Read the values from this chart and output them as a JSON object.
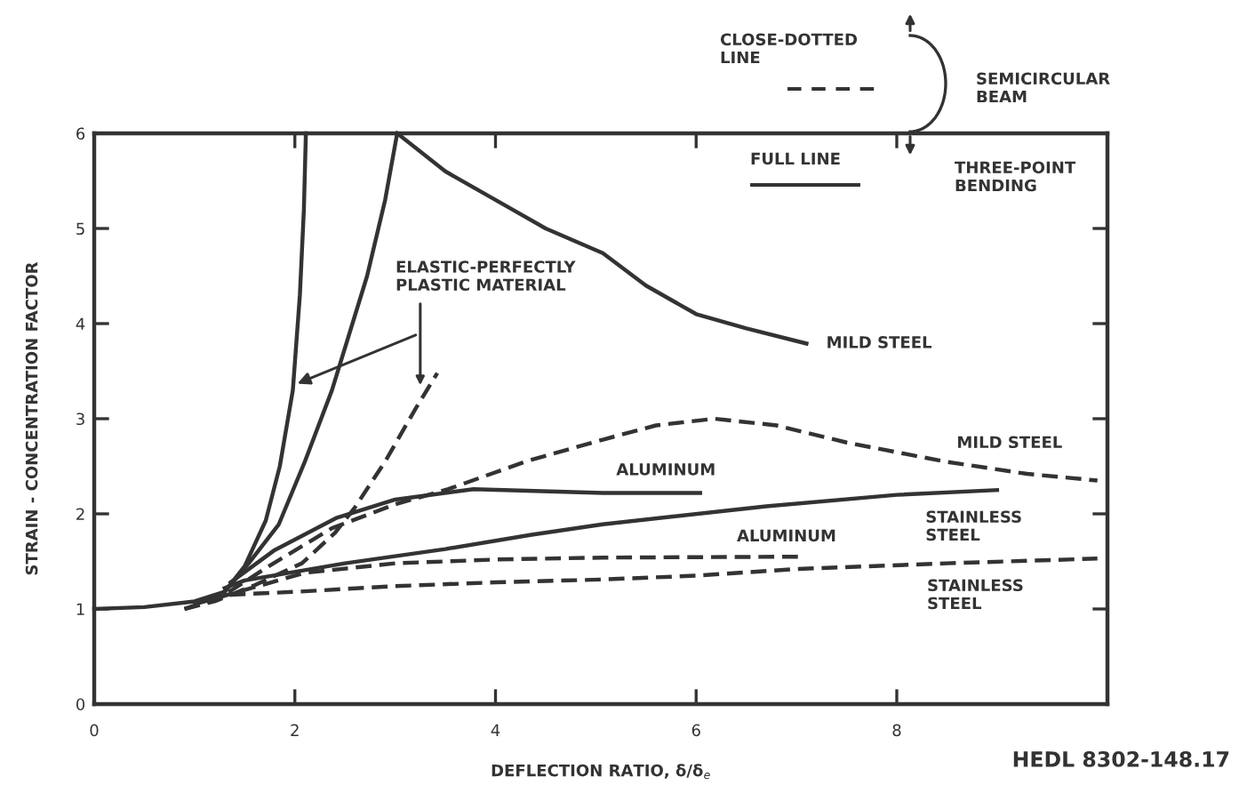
{
  "chart_data": {
    "type": "line",
    "xlabel": "DEFLECTION RATIO, δ/δ$_{e}$",
    "ylabel": "STRAIN - CONCENTRATION FACTOR",
    "xlim": [
      0,
      10.1
    ],
    "ylim": [
      0,
      6
    ],
    "xticks": [
      0,
      2,
      4,
      6,
      8
    ],
    "yticks": [
      0,
      1,
      2,
      3,
      4,
      5,
      6
    ],
    "grid": false,
    "legend": false,
    "marker": "none",
    "series": [
      {
        "color": "#333333",
        "line_style": "solid",
        "x": [
          0,
          0.5,
          1.0,
          1.3,
          1.5,
          1.71,
          1.85,
          1.98,
          2.05,
          2.09,
          2.11
        ],
        "values": [
          1,
          1.02,
          1.08,
          1.18,
          1.45,
          1.93,
          2.5,
          3.3,
          4.3,
          5.2,
          6
        ]
      },
      {
        "color": "#333333",
        "line_style": "solid",
        "x": [
          1.3,
          1.54,
          1.84,
          2.1,
          2.37,
          2.72,
          2.9,
          3.02
        ],
        "values": [
          1.18,
          1.48,
          1.89,
          2.55,
          3.3,
          4.5,
          5.3,
          6
        ]
      },
      {
        "name": "MILD STEEL",
        "color": "#333333",
        "line_style": "solid",
        "x": [
          3.02,
          3.5,
          4.0,
          4.5,
          5.07,
          5.5,
          6.0,
          6.5,
          7.1
        ],
        "values": [
          6,
          5.6,
          5.3,
          5.0,
          4.74,
          4.4,
          4.1,
          3.95,
          3.79
        ]
      },
      {
        "name": "ALUMINUM",
        "color": "#333333",
        "line_style": "solid",
        "x": [
          1.36,
          1.8,
          2.42,
          3.0,
          3.78,
          5.07,
          6.04
        ],
        "values": [
          1.28,
          1.62,
          1.96,
          2.15,
          2.26,
          2.22,
          2.22
        ]
      },
      {
        "name": "STAINLESS\nSTEEL",
        "color": "#333333",
        "line_style": "solid",
        "x": [
          1.3,
          1.5,
          2.5,
          3.5,
          4.36,
          5.07,
          6.7,
          8.0,
          9.0
        ],
        "values": [
          1.22,
          1.3,
          1.48,
          1.63,
          1.78,
          1.89,
          2.08,
          2.2,
          2.25
        ]
      },
      {
        "color": "#333333",
        "line_style": "dashed",
        "x": [
          0.9,
          1.2,
          1.6,
          2.07,
          2.4,
          2.6,
          2.9,
          3.2,
          3.42
        ],
        "values": [
          1.0,
          1.08,
          1.25,
          1.48,
          1.8,
          2.07,
          2.55,
          3.1,
          3.48
        ]
      },
      {
        "name": "MILD STEEL",
        "color": "#333333",
        "line_style": "dashed",
        "x": [
          0.9,
          1.3,
          1.71,
          2.37,
          3.0,
          3.53,
          4.3,
          5.07,
          5.6,
          6.18,
          6.8,
          7.5,
          8.48,
          9.3,
          10.0
        ],
        "values": [
          1.0,
          1.15,
          1.43,
          1.85,
          2.1,
          2.26,
          2.55,
          2.78,
          2.93,
          3.0,
          2.93,
          2.75,
          2.55,
          2.42,
          2.35
        ]
      },
      {
        "name": "ALUMINUM",
        "color": "#333333",
        "line_style": "dashed",
        "x": [
          1.0,
          1.5,
          2.1,
          3.0,
          4.0,
          5.07,
          7.07
        ],
        "values": [
          1.05,
          1.2,
          1.38,
          1.48,
          1.52,
          1.54,
          1.55
        ]
      },
      {
        "name": "STAINLESS\nSTEEL",
        "color": "#333333",
        "line_style": "dashed",
        "x": [
          0.9,
          1.36,
          2.0,
          3.0,
          4.0,
          5.07,
          6.0,
          7.0,
          8.5,
          10.0
        ],
        "values": [
          1.0,
          1.15,
          1.18,
          1.24,
          1.28,
          1.31,
          1.35,
          1.42,
          1.48,
          1.53
        ]
      }
    ],
    "annotations": [
      {
        "text": "ELASTIC-PERFECTLY\nPLASTIC MATERIAL",
        "x": 3.25,
        "y": 3.3
      },
      "CLOSE-DOTTED\nLINE",
      "SEMICIRCULAR\nBEAM",
      "FULL LINE",
      "THREE-POINT\nBENDING",
      "HEDL 8302-148.17"
    ]
  }
}
